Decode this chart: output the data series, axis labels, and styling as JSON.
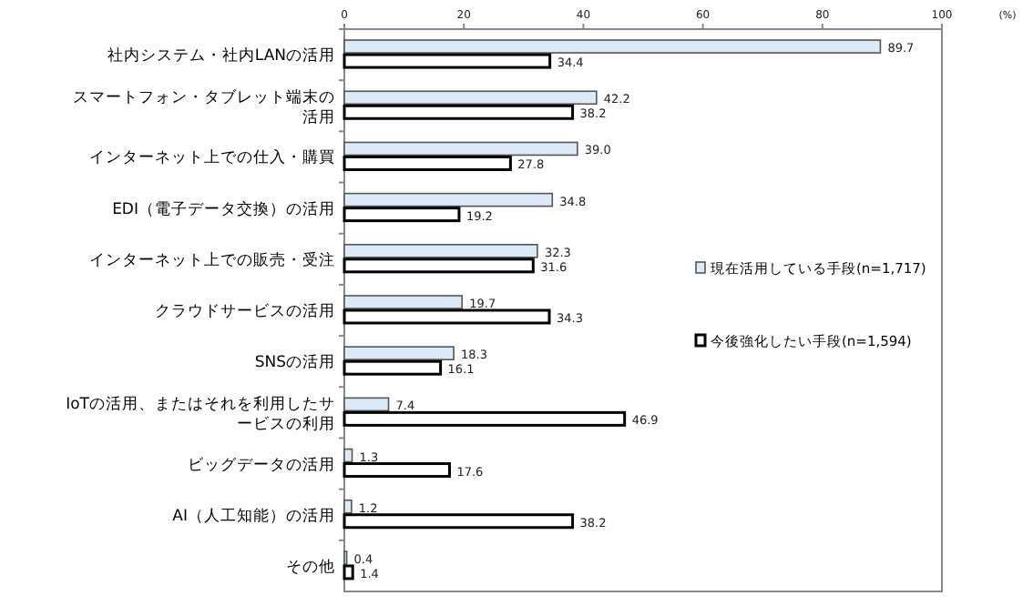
{
  "chart_data": {
    "type": "bar",
    "orientation": "horizontal",
    "xlabel": "(%)",
    "categories": [
      "社内システム・社内LANの活用",
      "スマートフォン・タブレット端末の活用",
      "インターネット上での仕入・購買",
      "EDI（電子データ交換）の活用",
      "インターネット上での販売・受注",
      "クラウドサービスの活用",
      "SNSの活用",
      "IoTの活用、またはそれを利用したサービスの利用",
      "ビッグデータの活用",
      "AI（人工知能）の活用",
      "その他"
    ],
    "series": [
      {
        "name": "現在活用している手段(n=1,717)",
        "color": "#dce9f7",
        "values": [
          89.7,
          42.2,
          39.0,
          34.8,
          32.3,
          19.7,
          18.3,
          7.4,
          1.3,
          1.2,
          0.4
        ],
        "value_labels": [
          "89.7",
          "42.2",
          "39.0",
          "34.8",
          "32.3",
          "19.7",
          "18.3",
          "7.4",
          "1.3",
          "1.2",
          "0.4"
        ]
      },
      {
        "name": "今後強化したい手段(n=1,594)",
        "color": "#ffffff",
        "values": [
          34.4,
          38.2,
          27.8,
          19.2,
          31.6,
          34.3,
          16.1,
          46.9,
          17.6,
          38.2,
          1.4
        ],
        "value_labels": [
          "34.4",
          "38.2",
          "27.8",
          "19.2",
          "31.6",
          "34.3",
          "16.1",
          "46.9",
          "17.6",
          "38.2",
          "1.4"
        ]
      }
    ],
    "xlim": [
      0,
      100
    ],
    "xticks": [
      0,
      20,
      40,
      60,
      80,
      100
    ],
    "grid": false,
    "legend": "right"
  }
}
